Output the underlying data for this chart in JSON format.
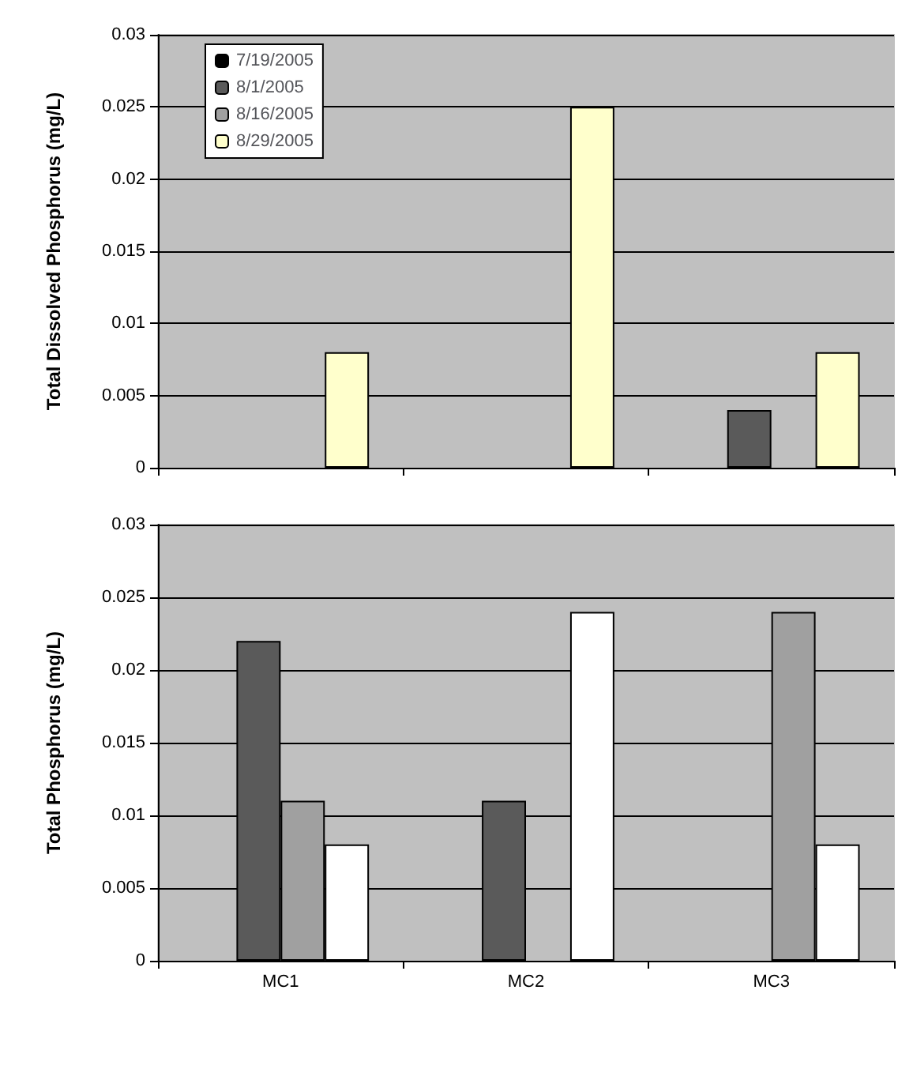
{
  "chart_data": [
    {
      "type": "bar",
      "ylabel": "Total Dissolved Phosphorus (mg/L)",
      "categories": [
        null,
        null,
        null
      ],
      "tick_labels": "y",
      "ylim": [
        0,
        0.03
      ],
      "yticks": [
        0,
        0.005,
        0.01,
        0.015,
        0.02,
        0.025,
        0.03
      ],
      "grid": "y",
      "legend": "top left",
      "series": [
        {
          "name": "7/19/2005",
          "color": "#000000",
          "values": [
            null,
            null,
            null
          ]
        },
        {
          "name": "8/1/2005",
          "color": "#5a5a5a",
          "values": [
            null,
            null,
            0.004
          ]
        },
        {
          "name": "8/16/2005",
          "color": "#a0a0a0",
          "values": [
            null,
            null,
            null
          ]
        },
        {
          "name": "8/29/2005",
          "color": "#ffffcc",
          "values": [
            0.008,
            0.025,
            0.008
          ]
        }
      ]
    },
    {
      "type": "bar",
      "ylabel": "Total Phosphorus (mg/L)",
      "categories": [
        "MC1",
        "MC2",
        "MC3"
      ],
      "ylim": [
        0,
        0.03
      ],
      "yticks": [
        0,
        0.005,
        0.01,
        0.015,
        0.02,
        0.025,
        0.03
      ],
      "grid": "y",
      "series": [
        {
          "color": "#000000",
          "values": [
            null,
            null,
            null
          ]
        },
        {
          "color": "#5a5a5a",
          "values": [
            0.022,
            0.011,
            null
          ]
        },
        {
          "color": "#a0a0a0",
          "values": [
            0.011,
            null,
            0.024
          ]
        },
        {
          "color": "#ffffff",
          "values": [
            0.008,
            0.024,
            0.008
          ]
        }
      ]
    }
  ]
}
